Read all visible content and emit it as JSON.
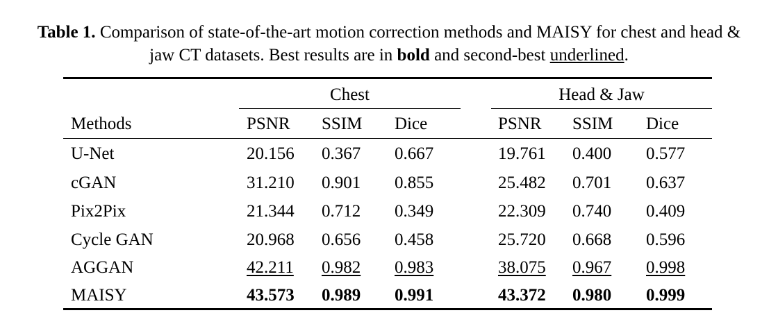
{
  "caption": {
    "label": "Table 1.",
    "text_part1": " Comparison of state-of-the-art motion correction methods and MAISY for chest and head & jaw CT datasets. Best results are in ",
    "bold_word": "bold",
    "text_part2": " and second-best ",
    "underlined_word": "underlined",
    "text_part3": "."
  },
  "table": {
    "groups": [
      "Chest",
      "Head & Jaw"
    ],
    "columns": [
      "Methods",
      "PSNR",
      "SSIM",
      "Dice",
      "PSNR",
      "SSIM",
      "Dice"
    ],
    "rows": [
      {
        "method": "U-Net",
        "values": [
          "20.156",
          "0.367",
          "0.667",
          "19.761",
          "0.400",
          "0.577"
        ],
        "style": "normal"
      },
      {
        "method": "cGAN",
        "values": [
          "31.210",
          "0.901",
          "0.855",
          "25.482",
          "0.701",
          "0.637"
        ],
        "style": "normal"
      },
      {
        "method": "Pix2Pix",
        "values": [
          "21.344",
          "0.712",
          "0.349",
          "22.309",
          "0.740",
          "0.409"
        ],
        "style": "normal"
      },
      {
        "method": "Cycle GAN",
        "values": [
          "20.968",
          "0.656",
          "0.458",
          "25.720",
          "0.668",
          "0.596"
        ],
        "style": "normal"
      },
      {
        "method": "AGGAN",
        "values": [
          "42.211",
          "0.982",
          "0.983",
          "38.075",
          "0.967",
          "0.998"
        ],
        "style": "second"
      },
      {
        "method": "MAISY",
        "values": [
          "43.573",
          "0.989",
          "0.991",
          "43.372",
          "0.980",
          "0.999"
        ],
        "style": "best"
      }
    ]
  }
}
